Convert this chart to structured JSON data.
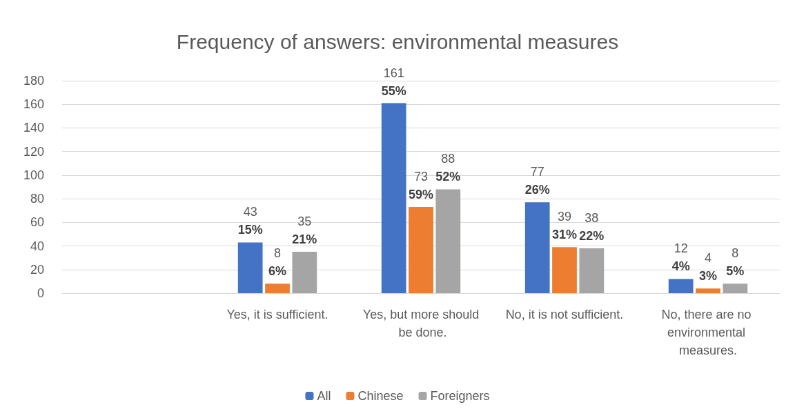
{
  "chart_data": {
    "type": "bar",
    "title": "Frequency of answers: environmental measures",
    "categories": [
      null,
      "Yes, it is sufficient.",
      "Yes, but more should be done.",
      "No, it is not sufficient.",
      "No, there are no environmental measures."
    ],
    "series": [
      {
        "name": "All",
        "color": "#4472c4",
        "values": [
          null,
          43,
          161,
          77,
          12
        ],
        "value_labels": [
          null,
          "43\n15%",
          "161\n55%",
          "77\n26%",
          "12\n4%"
        ]
      },
      {
        "name": "Chinese",
        "color": "#ed7d31",
        "values": [
          null,
          8,
          73,
          39,
          4
        ],
        "value_labels": [
          null,
          "8\n6%",
          "73\n59%",
          "39\n31%",
          "4\n3%"
        ]
      },
      {
        "name": "Foreigners",
        "color": "#a5a5a5",
        "values": [
          null,
          35,
          88,
          38,
          8
        ],
        "value_labels": [
          null,
          "35\n21%",
          "88\n52%",
          "38\n22%",
          "8\n5%"
        ]
      }
    ],
    "ylim": [
      0,
      180
    ],
    "yticks": [
      0,
      20,
      40,
      60,
      80,
      100,
      120,
      140,
      160,
      180
    ],
    "grid": "y",
    "legend": "bottom"
  }
}
